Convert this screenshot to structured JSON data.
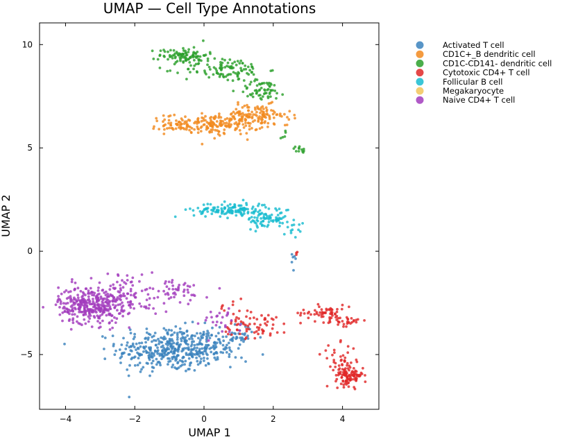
{
  "chart_data": {
    "type": "scatter",
    "title": "UMAP — Cell Type Annotations",
    "xlabel": "UMAP 1",
    "ylabel": "UMAP 2",
    "xlim": [
      -4.75,
      5.05
    ],
    "ylim": [
      -7.65,
      11.05
    ],
    "xticks": [
      -4,
      -2,
      0,
      2,
      4
    ],
    "xtick_labels": [
      "−4",
      "−2",
      "0",
      "2",
      "4"
    ],
    "yticks": [
      -5,
      0,
      5,
      10
    ],
    "ytick_labels": [
      "−5",
      "0",
      "5",
      "10"
    ],
    "grid": false,
    "legend_position": "outside-right",
    "series": [
      {
        "name": "Activated T cell",
        "color": "#3b83bd",
        "clusters": [
          {
            "cx": -1.0,
            "cy": -4.75,
            "sx": 0.75,
            "sy": 0.55,
            "n": 380
          },
          {
            "cx": 0.3,
            "cy": -4.6,
            "sx": 0.5,
            "sy": 0.35,
            "n": 90
          },
          {
            "cx": 1.1,
            "cy": -4.1,
            "sx": 0.3,
            "sy": 0.3,
            "n": 20
          },
          {
            "cx": 2.6,
            "cy": -0.5,
            "sx": 0.06,
            "sy": 0.25,
            "n": 6
          }
        ]
      },
      {
        "name": "CD1C+_B dendritic cell",
        "color": "#f28a1f",
        "clusters": [
          {
            "cx": 0.3,
            "cy": 6.15,
            "sx": 0.7,
            "sy": 0.25,
            "n": 200
          },
          {
            "cx": 1.5,
            "cy": 6.6,
            "sx": 0.5,
            "sy": 0.25,
            "n": 110
          },
          {
            "cx": -0.8,
            "cy": 6.1,
            "sx": 0.3,
            "sy": 0.15,
            "n": 20
          }
        ]
      },
      {
        "name": "CD1C-CD141- dendritic cell",
        "color": "#2ca02c",
        "clusters": [
          {
            "cx": -0.6,
            "cy": 9.5,
            "sx": 0.35,
            "sy": 0.2,
            "n": 90
          },
          {
            "cx": 0.6,
            "cy": 8.8,
            "sx": 0.6,
            "sy": 0.3,
            "n": 110
          },
          {
            "cx": 1.7,
            "cy": 7.8,
            "sx": 0.35,
            "sy": 0.25,
            "n": 60
          },
          {
            "cx": 2.75,
            "cy": 4.9,
            "sx": 0.1,
            "sy": 0.1,
            "n": 12
          },
          {
            "cx": 2.35,
            "cy": 5.5,
            "sx": 0.05,
            "sy": 0.2,
            "n": 5
          }
        ]
      },
      {
        "name": "Cytotoxic CD4+ T cell",
        "color": "#e02828",
        "clusters": [
          {
            "cx": 1.5,
            "cy": -3.6,
            "sx": 0.5,
            "sy": 0.3,
            "n": 60
          },
          {
            "cx": 3.5,
            "cy": -3.0,
            "sx": 0.35,
            "sy": 0.2,
            "n": 60
          },
          {
            "cx": 4.15,
            "cy": -3.4,
            "sx": 0.15,
            "sy": 0.12,
            "n": 25
          },
          {
            "cx": 4.2,
            "cy": -6.0,
            "sx": 0.2,
            "sy": 0.25,
            "n": 110
          },
          {
            "cx": 3.9,
            "cy": -5.2,
            "sx": 0.25,
            "sy": 0.35,
            "n": 30
          },
          {
            "cx": 0.9,
            "cy": -2.8,
            "sx": 0.3,
            "sy": 0.3,
            "n": 15
          },
          {
            "cx": 2.68,
            "cy": -0.05,
            "sx": 0.03,
            "sy": 0.05,
            "n": 3
          }
        ]
      },
      {
        "name": "Follicular B cell",
        "color": "#19bcd0",
        "clusters": [
          {
            "cx": 0.8,
            "cy": 2.0,
            "sx": 0.55,
            "sy": 0.18,
            "n": 140
          },
          {
            "cx": 1.9,
            "cy": 1.5,
            "sx": 0.35,
            "sy": 0.2,
            "n": 70
          },
          {
            "cx": 2.6,
            "cy": 0.9,
            "sx": 0.15,
            "sy": 0.25,
            "n": 10
          }
        ]
      },
      {
        "name": "Megakaryocyte",
        "color": "#f2c45a",
        "clusters": []
      },
      {
        "name": "Naive CD4+ T cell",
        "color": "#a23cbd",
        "clusters": [
          {
            "cx": -3.3,
            "cy": -2.6,
            "sx": 0.45,
            "sy": 0.45,
            "n": 320
          },
          {
            "cx": -2.2,
            "cy": -2.1,
            "sx": 0.45,
            "sy": 0.55,
            "n": 100
          },
          {
            "cx": -0.8,
            "cy": -2.0,
            "sx": 0.45,
            "sy": 0.35,
            "n": 45
          },
          {
            "cx": 0.4,
            "cy": -3.4,
            "sx": 0.5,
            "sy": 0.4,
            "n": 25
          }
        ]
      }
    ]
  }
}
